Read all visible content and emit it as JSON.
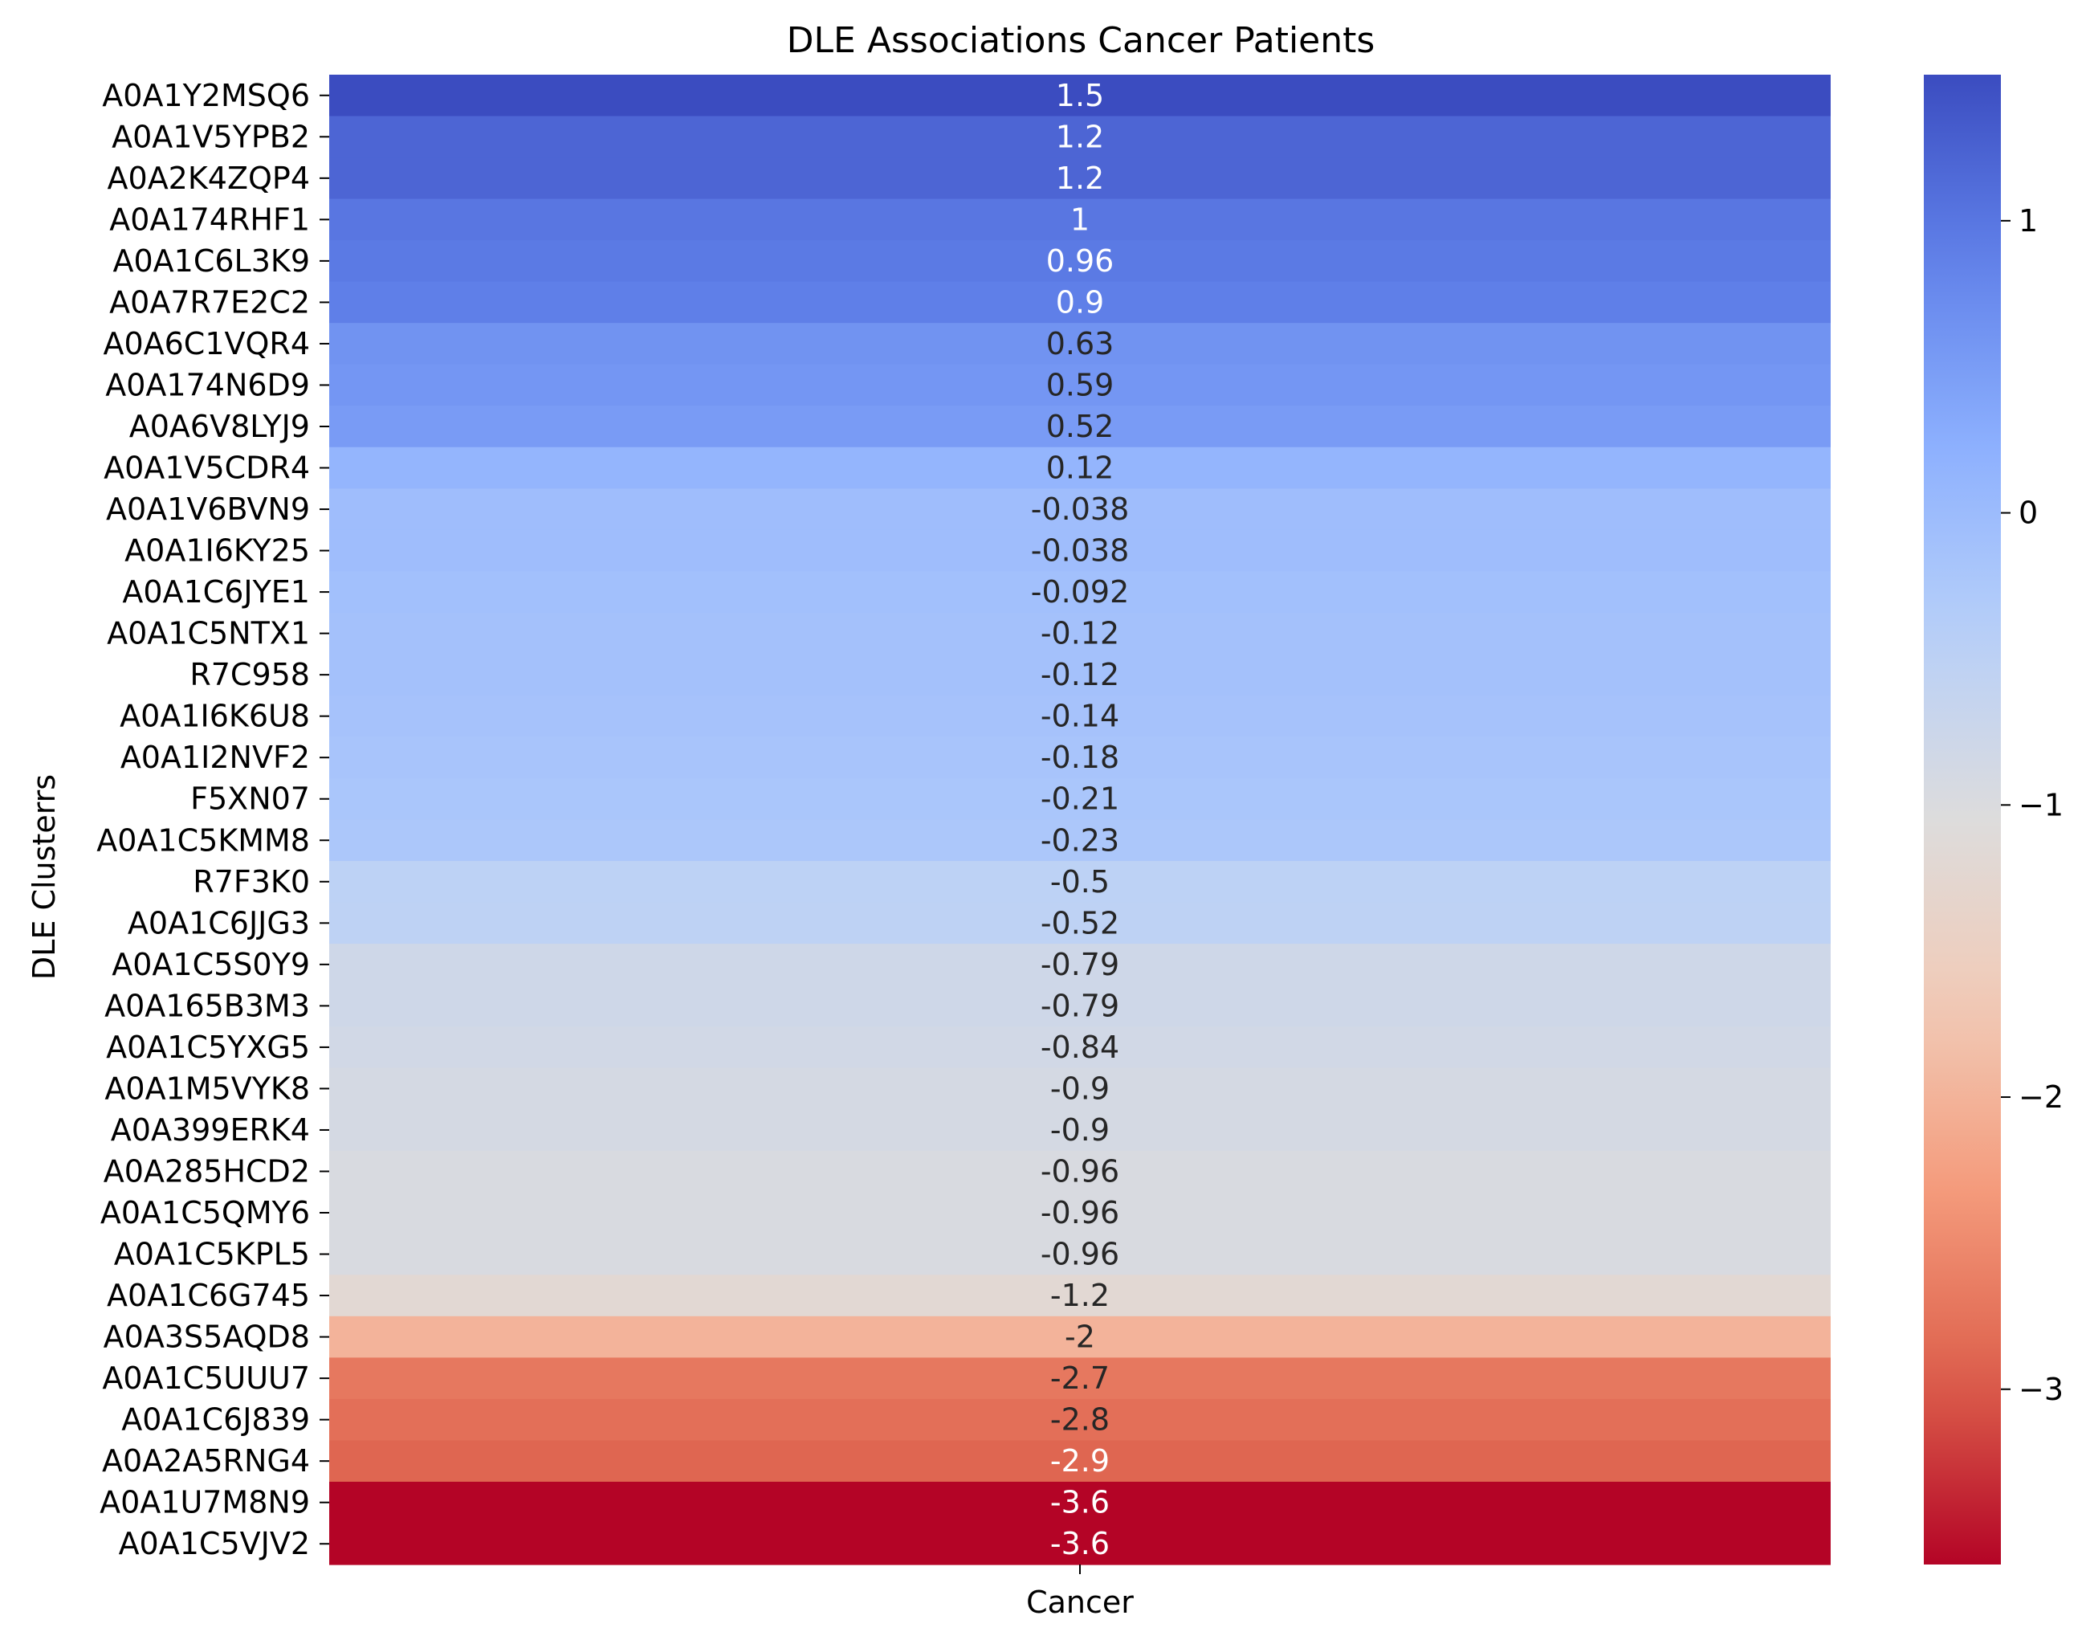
{
  "chart_data": {
    "type": "heatmap",
    "title": "DLE Associations Cancer Patients",
    "ylabel": "DLE Clusterrs",
    "xlabel": "",
    "columns": [
      "Cancer"
    ],
    "rows": [
      "A0A1Y2MSQ6",
      "A0A1V5YPB2",
      "A0A2K4ZQP4",
      "A0A174RHF1",
      "A0A1C6L3K9",
      "A0A7R7E2C2",
      "A0A6C1VQR4",
      "A0A174N6D9",
      "A0A6V8LYJ9",
      "A0A1V5CDR4",
      "A0A1V6BVN9",
      "A0A1I6KY25",
      "A0A1C6JYE1",
      "A0A1C5NTX1",
      "R7C958",
      "A0A1I6K6U8",
      "A0A1I2NVF2",
      "F5XN07",
      "A0A1C5KMM8",
      "R7F3K0",
      "A0A1C6JJG3",
      "A0A1C5S0Y9",
      "A0A165B3M3",
      "A0A1C5YXG5",
      "A0A1M5VYK8",
      "A0A399ERK4",
      "A0A285HCD2",
      "A0A1C5QMY6",
      "A0A1C5KPL5",
      "A0A1C6G745",
      "A0A3S5AQD8",
      "A0A1C5UUU7",
      "A0A1C6J839",
      "A0A2A5RNG4",
      "A0A1U7M8N9",
      "A0A1C5VJV2"
    ],
    "values": [
      1.5,
      1.2,
      1.2,
      1,
      0.96,
      0.9,
      0.63,
      0.59,
      0.52,
      0.12,
      -0.038,
      -0.038,
      -0.092,
      -0.12,
      -0.12,
      -0.14,
      -0.18,
      -0.21,
      -0.23,
      -0.5,
      -0.52,
      -0.79,
      -0.79,
      -0.84,
      -0.9,
      -0.9,
      -0.96,
      -0.96,
      -0.96,
      -1.2,
      -2,
      -2.7,
      -2.8,
      -2.9,
      -3.6,
      -3.6
    ],
    "labels": [
      "1.5",
      "1.2",
      "1.2",
      "1",
      "0.96",
      "0.9",
      "0.63",
      "0.59",
      "0.52",
      "0.12",
      "-0.038",
      "-0.038",
      "-0.092",
      "-0.12",
      "-0.12",
      "-0.14",
      "-0.18",
      "-0.21",
      "-0.23",
      "-0.5",
      "-0.52",
      "-0.79",
      "-0.79",
      "-0.84",
      "-0.9",
      "-0.9",
      "-0.96",
      "-0.96",
      "-0.96",
      "-1.2",
      "-2",
      "-2.7",
      "-2.8",
      "-2.9",
      "-3.6",
      "-3.6"
    ],
    "colormap": "coolwarm (reversed: high = blue, low = red)",
    "vmin": -3.6,
    "vmax": 1.5,
    "colorbar_ticks": [
      1,
      0,
      -1,
      -2,
      -3
    ],
    "colorbar_tick_labels": [
      "1",
      "0",
      "−1",
      "−2",
      "−3"
    ]
  }
}
